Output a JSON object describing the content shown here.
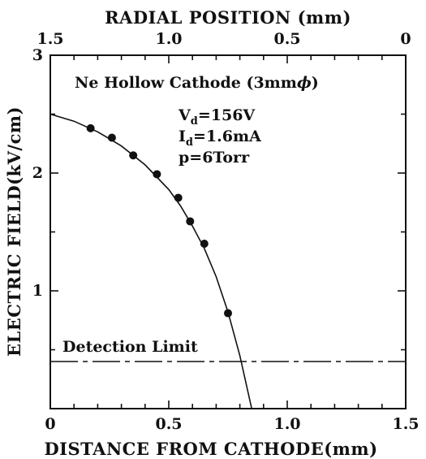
{
  "chart_data": {
    "type": "scatter",
    "xlabel": "DISTANCE FROM CATHODE(mm)",
    "x2label": "RADIAL POSITION (mm)",
    "ylabel": "ELECTRIC FIELD(kV/cm)",
    "xlim": [
      0,
      1.5
    ],
    "ylim": [
      0,
      3
    ],
    "x2lim": [
      1.5,
      0
    ],
    "x_ticks": [
      "0",
      "0.5",
      "1.0",
      "1.5"
    ],
    "x2_ticks": [
      "1.5",
      "1.0",
      "0.5",
      "0"
    ],
    "y_ticks": [
      "1",
      "2",
      "3"
    ],
    "annotation": {
      "title": "Ne Hollow Cathode (3mm",
      "title_symbol": "ϕ",
      "title_close": ")",
      "vd_prefix": "V",
      "vd_sub": "d",
      "vd_value": "=156V",
      "id_prefix": "I",
      "id_sub": "d",
      "id_value": "=1.6mA",
      "p": "p=6Torr"
    },
    "series": [
      {
        "type": "scatter",
        "x": [
          0.17,
          0.26,
          0.35,
          0.45,
          0.54,
          0.59,
          0.65,
          0.75
        ],
        "y": [
          2.38,
          2.3,
          2.15,
          1.99,
          1.79,
          1.59,
          1.4,
          0.81
        ]
      }
    ],
    "fit_curve": {
      "x": [
        0,
        0.1,
        0.2,
        0.3,
        0.4,
        0.5,
        0.55,
        0.6,
        0.65,
        0.7,
        0.75,
        0.8,
        0.85
      ],
      "y": [
        2.5,
        2.44,
        2.35,
        2.23,
        2.07,
        1.86,
        1.72,
        1.55,
        1.36,
        1.12,
        0.82,
        0.45,
        0.0
      ]
    },
    "detection_limit": {
      "label": "Detection Limit",
      "y": 0.4
    }
  }
}
